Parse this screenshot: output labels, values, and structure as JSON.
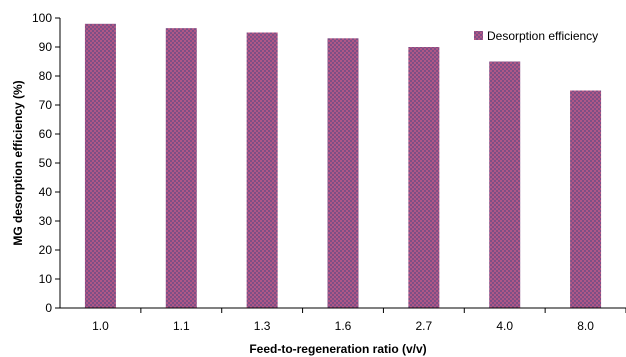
{
  "chart_data": {
    "type": "bar",
    "categories": [
      "1.0",
      "1.1",
      "1.3",
      "1.6",
      "2.7",
      "4.0",
      "8.0"
    ],
    "series": [
      {
        "name": "Desorption efficiency",
        "values": [
          98,
          96.5,
          95,
          93,
          90,
          85,
          75
        ]
      }
    ],
    "title": "",
    "xlabel": "Feed-to-regeneration ratio (v/v)",
    "ylabel": "MG desorption efficiency (%)",
    "ylim": [
      0,
      100
    ],
    "yticks": [
      "0",
      "10",
      "20",
      "30",
      "40",
      "50",
      "60",
      "70",
      "80",
      "90",
      "100"
    ],
    "grid": false,
    "legend_position": "top-right",
    "colors": {
      "bar_base": "#7d4f86",
      "bar_dot": "#d45d86",
      "axis": "#000000",
      "tick": "#000000"
    }
  }
}
